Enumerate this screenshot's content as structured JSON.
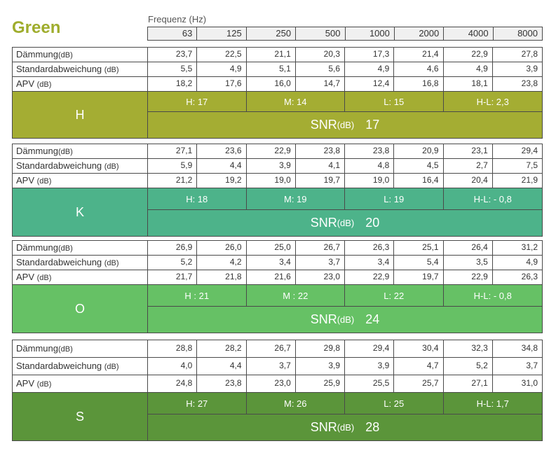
{
  "title": "Green",
  "frequency_label": "Frequenz (Hz)",
  "frequencies": [
    "63",
    "125",
    "250",
    "500",
    "1000",
    "2000",
    "4000",
    "8000"
  ],
  "snr_label": "SNR",
  "snr_unit": "(dB)",
  "blocks": [
    {
      "letter": "H",
      "color": "#a4ad33",
      "rows": [
        {
          "label": "Dämmung",
          "unit": "(dB)",
          "values": [
            "23,7",
            "22,5",
            "21,1",
            "20,3",
            "17,3",
            "21,4",
            "22,9",
            "27,8"
          ]
        },
        {
          "label": "Standardabweichung ",
          "unit": "(dB)",
          "values": [
            "5,5",
            "4,9",
            "5,1",
            "5,6",
            "4,9",
            "4,6",
            "4,9",
            "3,9"
          ]
        },
        {
          "label": "APV ",
          "unit": "(dB)",
          "values": [
            "18,2",
            "17,6",
            "16,0",
            "14,7",
            "12,4",
            "16,8",
            "18,1",
            "23,8"
          ]
        }
      ],
      "hml": [
        "H: 17",
        "M: 14",
        "L: 15",
        "H-L: 2,3"
      ],
      "snr": "17"
    },
    {
      "letter": "K",
      "color": "#4db38a",
      "rows": [
        {
          "label": "Dämmung",
          "unit": "(dB)",
          "values": [
            "27,1",
            "23,6",
            "22,9",
            "23,8",
            "23,8",
            "20,9",
            "23,1",
            "29,4"
          ]
        },
        {
          "label": "Standardabweichung ",
          "unit": "(dB)",
          "values": [
            "5,9",
            "4,4",
            "3,9",
            "4,1",
            "4,8",
            "4,5",
            "2,7",
            "7,5"
          ]
        },
        {
          "label": "APV ",
          "unit": "(dB)",
          "values": [
            "21,2",
            "19,2",
            "19,0",
            "19,7",
            "19,0",
            "16,4",
            "20,4",
            "21,9"
          ]
        }
      ],
      "hml": [
        "H: 18",
        "M: 19",
        "L: 19",
        "H-L: - 0,8"
      ],
      "snr": "20"
    },
    {
      "letter": "O",
      "color": "#66c165",
      "rows": [
        {
          "label": "Dämmung",
          "unit": "(dB)",
          "values": [
            "26,9",
            "26,0",
            "25,0",
            "26,7",
            "26,3",
            "25,1",
            "26,4",
            "31,2"
          ]
        },
        {
          "label": "Standardabweichung ",
          "unit": "(dB)",
          "values": [
            "5,2",
            "4,2",
            "3,4",
            "3,7",
            "3,4",
            "5,4",
            "3,5",
            "4,9"
          ]
        },
        {
          "label": "APV ",
          "unit": "(dB)",
          "values": [
            "21,7",
            "21,8",
            "21,6",
            "23,0",
            "22,9",
            "19,7",
            "22,9",
            "26,3"
          ]
        }
      ],
      "hml": [
        "H : 21",
        "M : 22",
        "L: 22",
        "H-L: - 0,8"
      ],
      "snr": "24"
    },
    {
      "letter": "S",
      "color": "#5b953a",
      "rows": [
        {
          "label": "Dämmung",
          "unit": "(dB)",
          "values": [
            "28,8",
            "28,2",
            "26,7",
            "29,8",
            "29,4",
            "30,4",
            "32,3",
            "34,8"
          ]
        },
        {
          "label": "Standardabweichung ",
          "unit": "(dB)",
          "values": [
            "4,0",
            "4,4",
            "3,7",
            "3,9",
            "3,9",
            "4,7",
            "5,2",
            "3,7"
          ]
        },
        {
          "label": "APV ",
          "unit": "(dB)",
          "values": [
            "24,8",
            "23,8",
            "23,0",
            "25,9",
            "25,5",
            "25,7",
            "27,1",
            "31,0"
          ]
        }
      ],
      "hml": [
        "H: 27",
        "M: 26",
        "L: 25",
        "H-L: 1,7"
      ],
      "snr": "28"
    }
  ]
}
